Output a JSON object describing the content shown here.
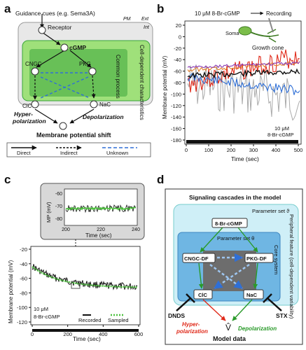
{
  "panel_a": {
    "letter": "a",
    "guidance_cue": "Guidance cues (e.g. Sema3A)",
    "receptor": "Receptor",
    "pm": "PM",
    "ext": "Ext",
    "int": "Int",
    "cgmp": "cGMP",
    "cngc": "CNGC",
    "pkg": "PKG",
    "cell_dependent": "Cell-dependent characteristics",
    "common_process": "Common process",
    "clc": "ClC",
    "nac": "NaC",
    "hyper": "Hyper-",
    "polarization": "polarization",
    "depolarization": "Depolarization",
    "membrane_shift": "Membrane potential shift",
    "legend": {
      "direct": "Direct",
      "indirect": "Indirect",
      "unknown": "Unknown"
    }
  },
  "panel_b": {
    "letter": "b",
    "stim_label": "10 μM 8-Br-cGMP",
    "recording": "Recording",
    "soma": "Soma",
    "growth_cone": "Growth cone",
    "ylabel": "Membrane potential (mV)",
    "xlabel": "Time (sec)",
    "bar_label_1": "10 μM",
    "bar_label_2": "8-Br-cGMP",
    "yticks": [
      "20",
      "0",
      "-20",
      "-40",
      "-60",
      "-80",
      "-100",
      "-120",
      "-140",
      "-160",
      "-180"
    ],
    "xticks": [
      "0",
      "100",
      "200",
      "300",
      "400",
      "500"
    ]
  },
  "panel_c": {
    "letter": "c",
    "inset_ylabel": "MP (mV)",
    "inset_yticks": [
      "-60",
      "-70",
      "-80"
    ],
    "inset_xticks": [
      "200",
      "220",
      "240"
    ],
    "inset_xlabel": "Time (sec)",
    "ylabel": "Membrane potential (mV)",
    "xlabel": "Time (sec)",
    "yticks": [
      "-20",
      "-40",
      "-60",
      "-80",
      "-100",
      "-120"
    ],
    "xticks": [
      "0",
      "200",
      "400",
      "600"
    ],
    "bar_label_1": "10 μM",
    "bar_label_2": "8-Br-cGMP",
    "legend_recorded": "Recorded",
    "legend_sampled": "Sampled"
  },
  "panel_d": {
    "letter": "d",
    "title": "Signaling cascades in the model",
    "param_outer": "Parameter set ϑ",
    "param_inner": "Parameter set θ",
    "peripheral": "Peripheral feature (cell-dependent variability)",
    "core": "Core system",
    "cgmp": "8-Br-cGMP",
    "cngc": "CNGC-DF",
    "pkg": "PKG-DF",
    "clc": "ClC",
    "nac": "NaC",
    "dnds": "DNDS",
    "stx": "STX",
    "hyper": "Hyper-",
    "polarization": "polarization",
    "depolarization": "Depolarization",
    "vhat": "V̂",
    "model_data": "Model data"
  },
  "colors": {
    "green_light": "#9fe07a",
    "green_dark": "#3aa53a",
    "cyan_light": "#cfeff7",
    "blue_box": "#6fb6e3",
    "gray_box": "#6d6d6d",
    "blue_dash": "#2f6fd6",
    "red": "#e02a1a",
    "green_text": "#2a9a2a"
  }
}
